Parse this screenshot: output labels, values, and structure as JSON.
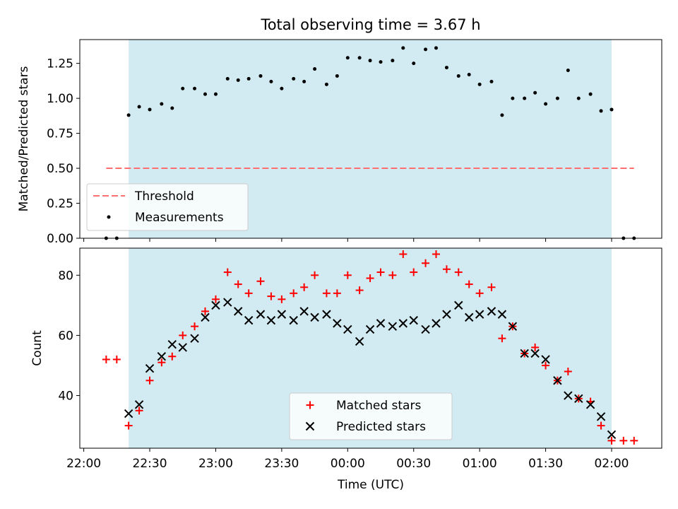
{
  "chart_data": {
    "title": "Total observing time = 3.67 h",
    "xlabel": "Time (UTC)",
    "x_tick_labels": [
      "22:00",
      "22:30",
      "23:00",
      "23:30",
      "00:00",
      "00:30",
      "01:00",
      "01:30",
      "02:00"
    ],
    "x_tick_hours": [
      0,
      0.5,
      1,
      1.5,
      2,
      2.5,
      3,
      3.5,
      4
    ],
    "xlim_hours_after_2200": [
      -0.03,
      4.38
    ],
    "observing_window_hours_after_2200": [
      0.34,
      4.0
    ],
    "window_color": "#add8e6",
    "panels": [
      {
        "type": "scatter",
        "ylabel": "Matched/Predicted stars",
        "ylim": [
          0,
          1.42
        ],
        "y_ticks": [
          0.0,
          0.25,
          0.5,
          0.75,
          1.0,
          1.25
        ],
        "y_tick_labels": [
          "0.00",
          "0.25",
          "0.50",
          "0.75",
          "1.00",
          "1.25"
        ],
        "threshold": {
          "name": "Threshold",
          "value": 0.5,
          "x_range_hours": [
            0.17,
            4.17
          ],
          "color": "#ff6f6f"
        },
        "measurements": {
          "name": "Measurements",
          "color": "#000000",
          "x_hours": [
            0.17,
            0.25,
            0.34,
            0.42,
            0.5,
            0.59,
            0.67,
            0.75,
            0.84,
            0.92,
            1.0,
            1.09,
            1.17,
            1.25,
            1.34,
            1.42,
            1.5,
            1.59,
            1.67,
            1.75,
            1.84,
            1.92,
            2.0,
            2.09,
            2.17,
            2.25,
            2.34,
            2.42,
            2.5,
            2.59,
            2.67,
            2.75,
            2.84,
            2.92,
            3.0,
            3.09,
            3.17,
            3.25,
            3.34,
            3.42,
            3.5,
            3.59,
            3.67,
            3.75,
            3.84,
            3.92,
            4.0,
            4.09,
            4.17
          ],
          "values": [
            0.0,
            0.0,
            0.88,
            0.94,
            0.92,
            0.96,
            0.93,
            1.07,
            1.07,
            1.03,
            1.03,
            1.14,
            1.13,
            1.14,
            1.16,
            1.12,
            1.07,
            1.14,
            1.12,
            1.21,
            1.1,
            1.16,
            1.29,
            1.29,
            1.27,
            1.26,
            1.27,
            1.36,
            1.25,
            1.35,
            1.36,
            1.22,
            1.16,
            1.17,
            1.1,
            1.12,
            0.88,
            1.0,
            1.0,
            1.04,
            0.96,
            1.0,
            1.2,
            1.0,
            1.03,
            0.91,
            0.92,
            0.0,
            0.0
          ]
        },
        "legend_position": "lower-left"
      },
      {
        "type": "scatter",
        "ylabel": "Count",
        "ylim": [
          22.5,
          89.0
        ],
        "y_ticks": [
          40,
          60,
          80
        ],
        "y_tick_labels": [
          "40",
          "60",
          "80"
        ],
        "series": [
          {
            "name": "Matched stars",
            "marker": "+",
            "color": "#ff0000",
            "x_hours": [
              0.17,
              0.25,
              0.34,
              0.42,
              0.5,
              0.59,
              0.67,
              0.75,
              0.84,
              0.92,
              1.0,
              1.09,
              1.17,
              1.25,
              1.34,
              1.42,
              1.5,
              1.59,
              1.67,
              1.75,
              1.84,
              1.92,
              2.0,
              2.09,
              2.17,
              2.25,
              2.34,
              2.42,
              2.5,
              2.59,
              2.67,
              2.75,
              2.84,
              2.92,
              3.0,
              3.09,
              3.17,
              3.25,
              3.34,
              3.42,
              3.5,
              3.59,
              3.67,
              3.75,
              3.84,
              3.92,
              4.0,
              4.09,
              4.17
            ],
            "values": [
              52,
              52,
              30,
              35,
              45,
              51,
              53,
              60,
              63,
              68,
              72,
              81,
              77,
              74,
              78,
              73,
              72,
              74,
              76,
              80,
              74,
              74,
              80,
              75,
              79,
              81,
              80,
              87,
              81,
              84,
              87,
              82,
              81,
              77,
              74,
              76,
              59,
              63,
              54,
              56,
              50,
              45,
              48,
              39,
              38,
              30,
              25,
              25,
              25
            ]
          },
          {
            "name": "Predicted stars",
            "marker": "x",
            "color": "#000000",
            "x_hours": [
              0.34,
              0.42,
              0.5,
              0.59,
              0.67,
              0.75,
              0.84,
              0.92,
              1.0,
              1.09,
              1.17,
              1.25,
              1.34,
              1.42,
              1.5,
              1.59,
              1.67,
              1.75,
              1.84,
              1.92,
              2.0,
              2.09,
              2.17,
              2.25,
              2.34,
              2.42,
              2.5,
              2.59,
              2.67,
              2.75,
              2.84,
              2.92,
              3.0,
              3.09,
              3.17,
              3.25,
              3.34,
              3.42,
              3.5,
              3.59,
              3.67,
              3.75,
              3.84,
              3.92,
              4.0
            ],
            "values": [
              34,
              37,
              49,
              53,
              57,
              56,
              59,
              66,
              70,
              71,
              68,
              65,
              67,
              65,
              67,
              65,
              68,
              66,
              67,
              64,
              62,
              58,
              62,
              64,
              63,
              64,
              65,
              62,
              64,
              67,
              70,
              66,
              67,
              68,
              67,
              63,
              54,
              54,
              52,
              45,
              40,
              39,
              37,
              33,
              27
            ]
          }
        ],
        "legend_position": "lower-center"
      }
    ]
  }
}
